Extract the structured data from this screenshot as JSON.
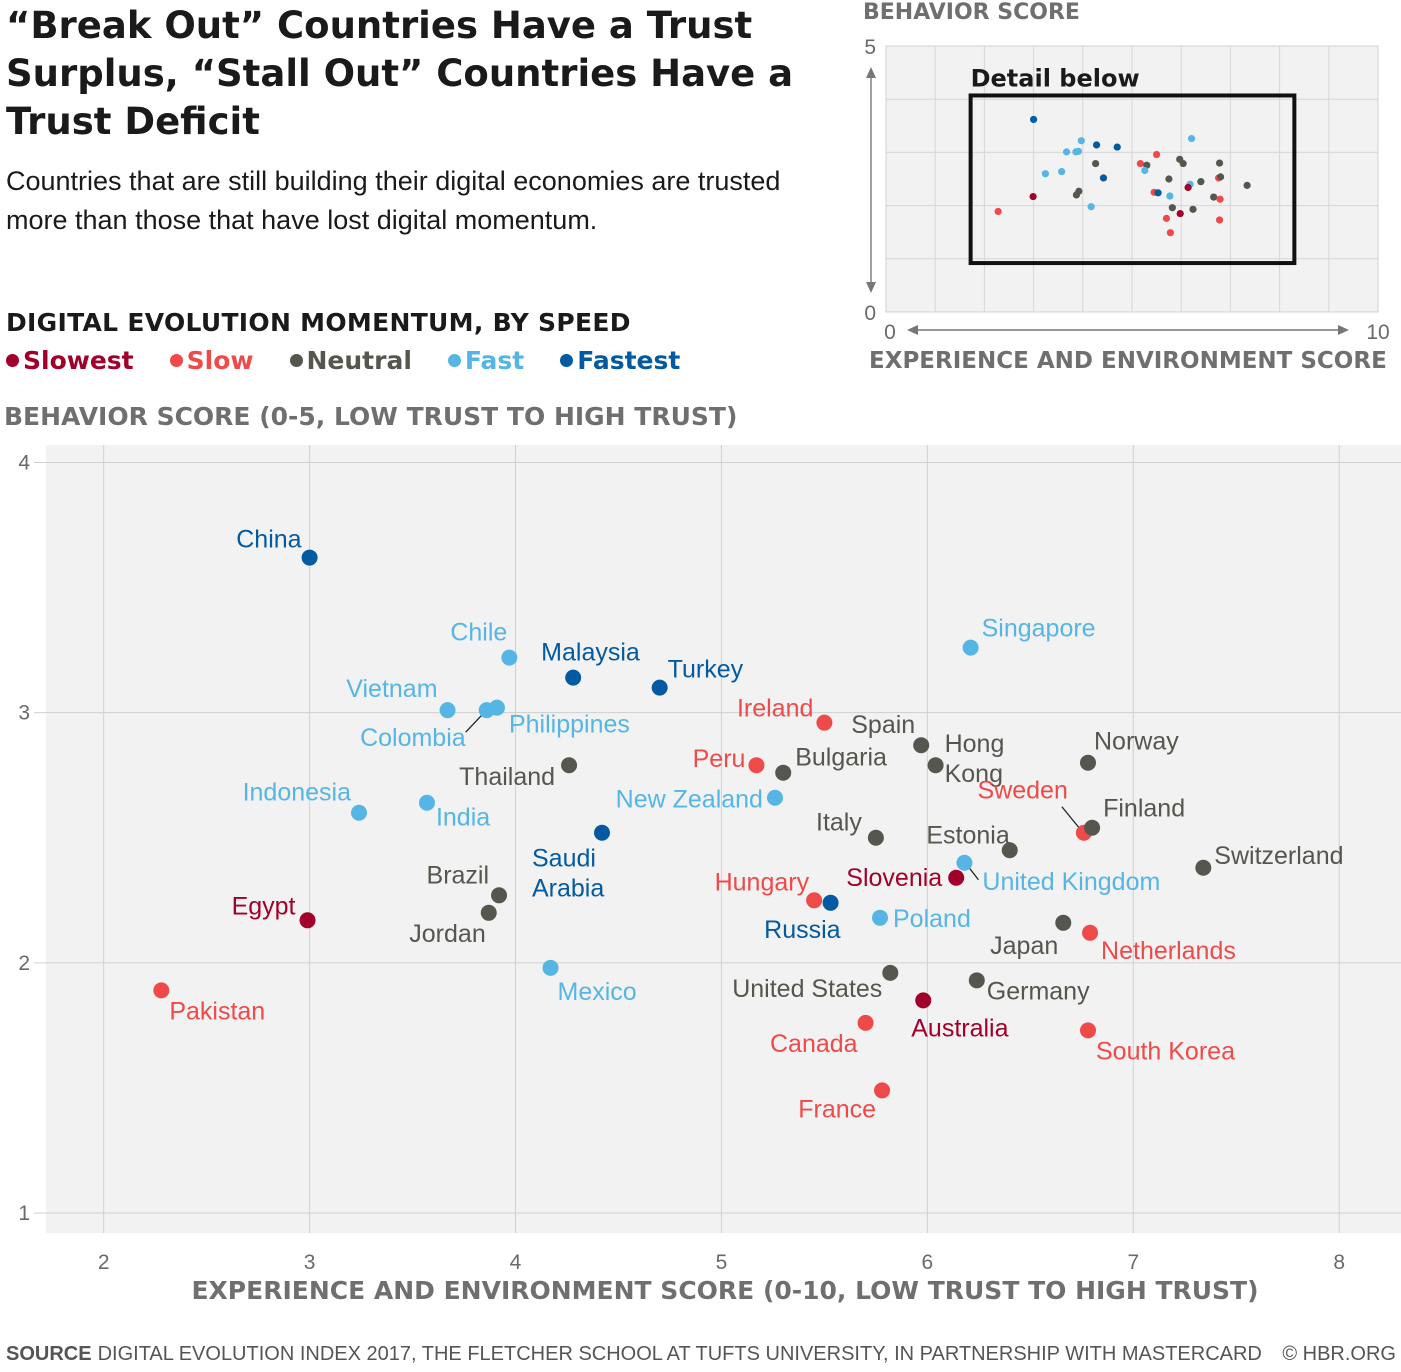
{
  "title": "“Break Out” Countries Have a Trust Surplus, “Stall Out” Countries Have a Trust Deficit",
  "subtitle": "Countries that are still building their digital economies are trusted more than those that have lost digital momentum.",
  "legend": {
    "title": "DIGITAL EVOLUTION MOMENTUM, BY SPEED",
    "items": [
      {
        "label": "Slowest",
        "color": "#a1002a"
      },
      {
        "label": "Slow",
        "color": "#ef4a4a"
      },
      {
        "label": "Neutral",
        "color": "#55564d"
      },
      {
        "label": "Fast",
        "color": "#55b5e5"
      },
      {
        "label": "Fastest",
        "color": "#035aa0"
      }
    ]
  },
  "inset": {
    "ylabel": "BEHAVIOR SCORE",
    "xlabel": "EXPERIENCE AND ENVIRONMENT SCORE",
    "detail_label": "Detail below",
    "xlim": [
      0,
      10
    ],
    "ylim": [
      0,
      5
    ],
    "x_ticks": [
      "0",
      "10"
    ],
    "y_ticks": [
      "0",
      "5"
    ]
  },
  "footer": {
    "source_label": "SOURCE",
    "source_text": "DIGITAL EVOLUTION INDEX 2017, THE FLETCHER SCHOOL AT TUFTS UNIVERSITY, IN PARTNERSHIP WITH MASTERCARD",
    "credit": "© HBR.ORG"
  },
  "chart_data": {
    "type": "scatter",
    "ylabel": "BEHAVIOR SCORE (0-5, LOW TRUST TO HIGH TRUST)",
    "xlabel": "EXPERIENCE AND ENVIRONMENT SCORE (0-10, LOW TRUST TO HIGH TRUST)",
    "xlim": [
      1.72,
      8.3
    ],
    "ylim": [
      0.92,
      4.07
    ],
    "x_ticks": [
      2,
      3,
      4,
      5,
      6,
      7,
      8
    ],
    "y_ticks": [
      1,
      2,
      3,
      4
    ],
    "grid": true,
    "speed_colors": {
      "Slowest": "#a1002a",
      "Slow": "#ef4a4a",
      "Neutral": "#55564d",
      "Fast": "#55b5e5",
      "Fastest": "#035aa0"
    },
    "points": [
      {
        "country": "China",
        "x": 3.0,
        "y": 3.62,
        "speed": "Fastest"
      },
      {
        "country": "Chile",
        "x": 3.97,
        "y": 3.22,
        "speed": "Fast"
      },
      {
        "country": "Malaysia",
        "x": 4.28,
        "y": 3.14,
        "speed": "Fastest"
      },
      {
        "country": "Turkey",
        "x": 4.7,
        "y": 3.1,
        "speed": "Fastest"
      },
      {
        "country": "Vietnam",
        "x": 3.67,
        "y": 3.01,
        "speed": "Fast"
      },
      {
        "country": "Colombia",
        "x": 3.86,
        "y": 3.01,
        "speed": "Fast"
      },
      {
        "country": "Philippines",
        "x": 3.91,
        "y": 3.02,
        "speed": "Fast"
      },
      {
        "country": "Thailand",
        "x": 4.26,
        "y": 2.79,
        "speed": "Neutral"
      },
      {
        "country": "Indonesia",
        "x": 3.24,
        "y": 2.6,
        "speed": "Fast"
      },
      {
        "country": "India",
        "x": 3.57,
        "y": 2.64,
        "speed": "Fast"
      },
      {
        "country": "Saudi Arabia",
        "x": 4.42,
        "y": 2.52,
        "speed": "Fastest"
      },
      {
        "country": "Egypt",
        "x": 2.99,
        "y": 2.17,
        "speed": "Slowest"
      },
      {
        "country": "Brazil",
        "x": 3.92,
        "y": 2.27,
        "speed": "Neutral"
      },
      {
        "country": "Jordan",
        "x": 3.87,
        "y": 2.2,
        "speed": "Neutral"
      },
      {
        "country": "Pakistan",
        "x": 2.28,
        "y": 1.89,
        "speed": "Slow"
      },
      {
        "country": "Mexico",
        "x": 4.17,
        "y": 1.98,
        "speed": "Fast"
      },
      {
        "country": "Singapore",
        "x": 6.21,
        "y": 3.26,
        "speed": "Fast"
      },
      {
        "country": "Ireland",
        "x": 5.5,
        "y": 2.96,
        "speed": "Slow"
      },
      {
        "country": "Spain",
        "x": 5.97,
        "y": 2.87,
        "speed": "Neutral"
      },
      {
        "country": "Hong Kong",
        "x": 6.04,
        "y": 2.79,
        "speed": "Neutral"
      },
      {
        "country": "Peru",
        "x": 5.17,
        "y": 2.79,
        "speed": "Slow"
      },
      {
        "country": "Bulgaria",
        "x": 5.3,
        "y": 2.76,
        "speed": "Neutral"
      },
      {
        "country": "Norway",
        "x": 6.78,
        "y": 2.8,
        "speed": "Neutral"
      },
      {
        "country": "New Zealand",
        "x": 5.26,
        "y": 2.66,
        "speed": "Fast"
      },
      {
        "country": "Sweden",
        "x": 6.76,
        "y": 2.52,
        "speed": "Slow"
      },
      {
        "country": "Finland",
        "x": 6.8,
        "y": 2.54,
        "speed": "Neutral"
      },
      {
        "country": "Italy",
        "x": 5.75,
        "y": 2.5,
        "speed": "Neutral"
      },
      {
        "country": "Estonia",
        "x": 6.4,
        "y": 2.45,
        "speed": "Neutral"
      },
      {
        "country": "United Kingdom",
        "x": 6.18,
        "y": 2.4,
        "speed": "Fast"
      },
      {
        "country": "Slovenia",
        "x": 6.14,
        "y": 2.34,
        "speed": "Slowest"
      },
      {
        "country": "Switzerland",
        "x": 7.34,
        "y": 2.38,
        "speed": "Neutral"
      },
      {
        "country": "Hungary",
        "x": 5.45,
        "y": 2.25,
        "speed": "Slow"
      },
      {
        "country": "Russia",
        "x": 5.53,
        "y": 2.24,
        "speed": "Fastest"
      },
      {
        "country": "Poland",
        "x": 5.77,
        "y": 2.18,
        "speed": "Fast"
      },
      {
        "country": "Japan",
        "x": 6.66,
        "y": 2.16,
        "speed": "Neutral"
      },
      {
        "country": "Netherlands",
        "x": 6.79,
        "y": 2.12,
        "speed": "Slow"
      },
      {
        "country": "United States",
        "x": 5.82,
        "y": 1.96,
        "speed": "Neutral"
      },
      {
        "country": "Germany",
        "x": 6.24,
        "y": 1.93,
        "speed": "Neutral"
      },
      {
        "country": "Australia",
        "x": 5.98,
        "y": 1.85,
        "speed": "Slowest"
      },
      {
        "country": "Canada",
        "x": 5.7,
        "y": 1.76,
        "speed": "Slow"
      },
      {
        "country": "South Korea",
        "x": 6.78,
        "y": 1.73,
        "speed": "Slow"
      },
      {
        "country": "France",
        "x": 5.78,
        "y": 1.49,
        "speed": "Slow"
      }
    ]
  }
}
